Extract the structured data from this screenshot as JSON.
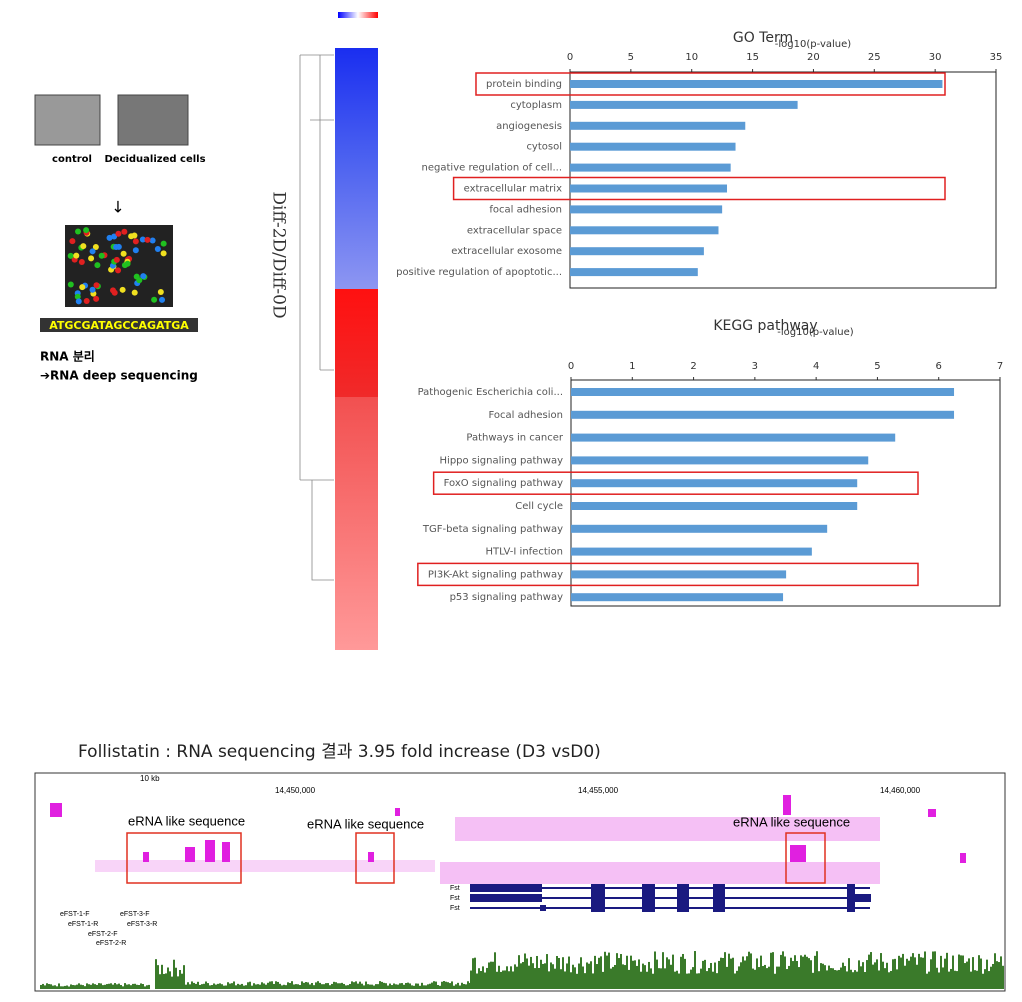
{
  "chart_data": [
    {
      "type": "bar",
      "orientation": "horizontal",
      "title": "GO Term",
      "x_label": "-log10(p-value)",
      "categories": [
        "protein binding",
        "cytoplasm",
        "angiogenesis",
        "cytosol",
        "negative regulation of cell...",
        "extracellular matrix",
        "focal adhesion",
        "extracellular space",
        "extracellular exosome",
        "positive regulation of apoptotic..."
      ],
      "values": [
        30.6,
        18.7,
        14.4,
        13.6,
        13.2,
        12.9,
        12.5,
        12.2,
        11.0,
        10.5
      ],
      "color": "#5b9bd5",
      "xlim": [
        0,
        35
      ],
      "xticks": [
        0,
        5,
        10,
        15,
        20,
        25,
        30,
        35
      ],
      "highlighted": [
        0,
        5
      ],
      "highlight_color": "#e02020"
    },
    {
      "type": "bar",
      "orientation": "horizontal",
      "title": "KEGG pathway",
      "x_label": "-log10(p-value)",
      "categories": [
        "Pathogenic Escherichia coli...",
        "Focal adhesion",
        "Pathways in cancer",
        "Hippo signaling pathway",
        "FoxO signaling pathway",
        "Cell cycle",
        "TGF-beta signaling pathway",
        "HTLV-I infection",
        "PI3K-Akt signaling pathway",
        "p53 signaling pathway"
      ],
      "values": [
        6.25,
        6.25,
        5.29,
        4.85,
        4.67,
        4.67,
        4.18,
        3.93,
        3.51,
        3.46
      ],
      "color": "#5b9bd5",
      "xlim": [
        0,
        7
      ],
      "xticks": [
        0,
        1,
        2,
        3,
        4,
        5,
        6,
        7
      ],
      "highlighted": [
        4,
        8
      ],
      "highlight_color": "#e02020"
    }
  ],
  "schematic": {
    "labels": [
      "control",
      "Decidualized cells"
    ],
    "sequence": "ATGCGATAGCCAGATGA",
    "step1": "RNA 분리",
    "step2": "➔RNA deep sequencing"
  },
  "heatmap": {
    "label": "Diff-2D/Diff-0D"
  },
  "browser": {
    "title": "Follistatin : RNA sequencing 결과 3.95 fold increase (D3 vsD0)",
    "scale": "10 kb",
    "coordinates": [
      "14,450,000",
      "14,455,000",
      "14,460,000"
    ],
    "annotations": [
      "eRNA like sequence",
      "eRNA like sequence",
      "eRNA like sequence"
    ],
    "genes": [
      "Fst",
      "Fst",
      "Fst"
    ],
    "primers": [
      "eFST-1-F",
      "eFST-3-F",
      "eFST-1-R",
      "eFST-3-R",
      "eFST-2-F",
      "eFST-2-R"
    ]
  }
}
